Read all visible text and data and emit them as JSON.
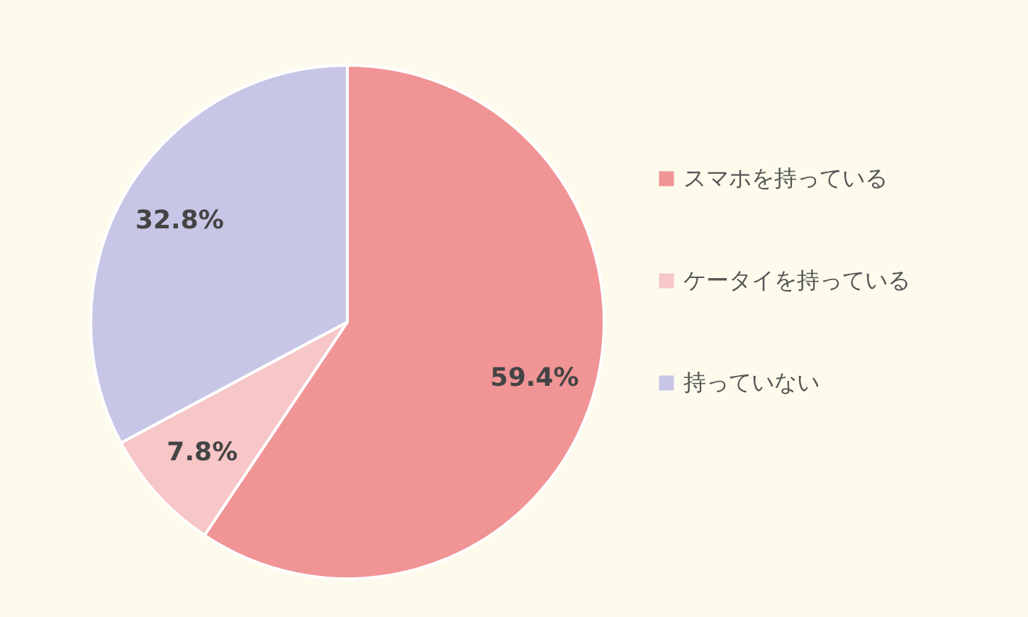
{
  "chart_data": {
    "type": "pie",
    "categories": [
      "スマホを持っている",
      "ケータイを持っている",
      "持っていない"
    ],
    "values": [
      59.4,
      7.8,
      32.8
    ],
    "colors": [
      "#f09496",
      "#f7c6c7",
      "#c8c6e6"
    ],
    "value_labels": [
      "59.4%",
      "7.8%",
      "32.8%"
    ],
    "legend": "right"
  }
}
